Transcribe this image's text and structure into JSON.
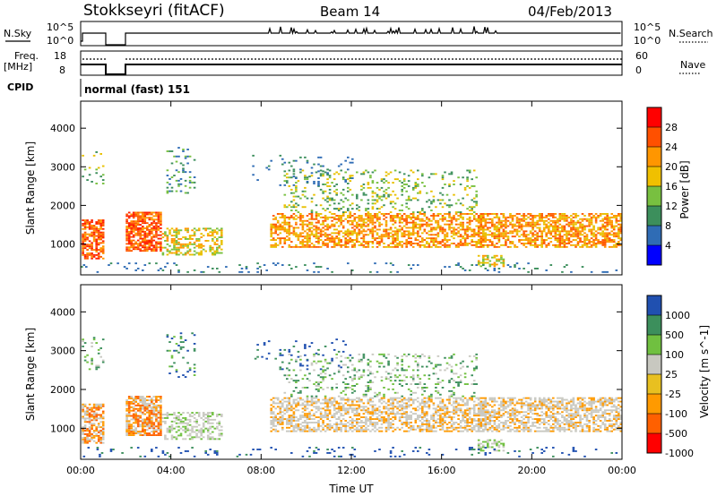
{
  "header": {
    "site": "Stokkseyri (fitACF)",
    "beam": "Beam 14",
    "date": "04/Feb/2013"
  },
  "summary": {
    "nsky_label": "N.Sky",
    "nsky_ticks": [
      "10^5",
      "10^0"
    ],
    "nsearch_label": "N.Search",
    "nsearch_ticks": [
      "10^5",
      "10^0"
    ],
    "freq_label": "Freq.",
    "freq_unit": "[MHz]",
    "freq_ticks": [
      "18",
      "8"
    ],
    "nave_label": "Nave",
    "nave_ticks": [
      "60",
      "0"
    ],
    "cpid_label": "CPID",
    "cpid_text": "normal (fast) 151"
  },
  "chart_data": [
    {
      "type": "heatmap",
      "title": "",
      "ylabel": "Slant Range [km]",
      "xlabel": "",
      "x_ticks": [
        "00:00",
        "04:00",
        "08:00",
        "12:00",
        "16:00",
        "20:00",
        "00:00"
      ],
      "y_ticks": [
        1000,
        2000,
        3000,
        4000
      ],
      "ylim": [
        200,
        4700
      ],
      "colorbar": {
        "label": "Power [dB]",
        "tick_labels": [
          "28",
          "24",
          "20",
          "16",
          "12",
          "8",
          "4"
        ],
        "colors": [
          "#ff0000",
          "#ff5000",
          "#ff9600",
          "#f0c000",
          "#78c040",
          "#3c8f5c",
          "#2f6cb5",
          "#0000ff"
        ]
      }
    },
    {
      "type": "heatmap",
      "title": "",
      "ylabel": "Slant Range [km]",
      "xlabel": "Time UT",
      "x_ticks": [
        "00:00",
        "04:00",
        "08:00",
        "12:00",
        "16:00",
        "20:00",
        "00:00"
      ],
      "y_ticks": [
        1000,
        2000,
        3000,
        4000
      ],
      "ylim": [
        200,
        4700
      ],
      "colorbar": {
        "label": "Velocity [m s^-1]",
        "tick_labels": [
          "1000",
          "500",
          "100",
          "25",
          "-25",
          "-100",
          "-500",
          "-1000"
        ],
        "colors": [
          "#2050b0",
          "#3c8f5c",
          "#70c040",
          "#c8c8c0",
          "#e8c020",
          "#ff9a00",
          "#ff6000",
          "#ff0000"
        ]
      }
    }
  ]
}
